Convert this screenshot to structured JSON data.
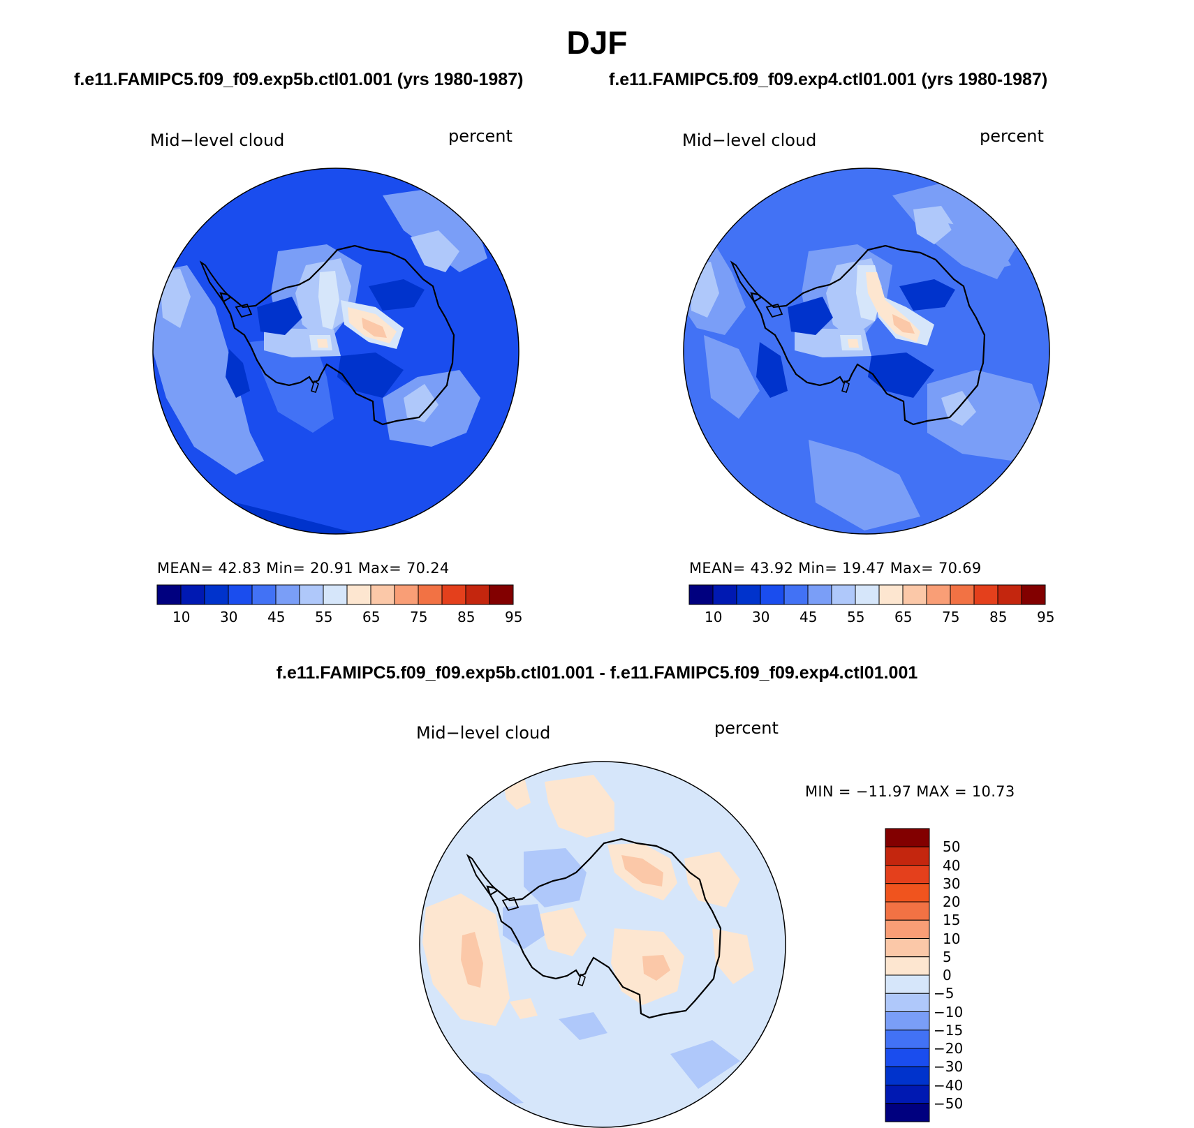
{
  "title": "DJF",
  "panels": [
    {
      "case_title": "f.e11.FAMIPC5.f09_f09.exp5b.ctl01.001 (yrs 1980-1987)",
      "variable": "Mid−level cloud",
      "units": "percent",
      "stats": "MEAN=   42.83   Min=   20.91   Max=   70.24",
      "field": "field1"
    },
    {
      "case_title": "f.e11.FAMIPC5.f09_f09.exp4.ctl01.001 (yrs 1980-1987)",
      "variable": "Mid−level cloud",
      "units": "percent",
      "stats": "MEAN=   43.92   Min=   19.47   Max=   70.69",
      "field": "field2"
    }
  ],
  "difference": {
    "title": "f.e11.FAMIPC5.f09_f09.exp5b.ctl01.001 - f.e11.FAMIPC5.f09_f09.exp4.ctl01.001",
    "variable": "Mid−level cloud",
    "units": "percent",
    "stats": "MIN = −11.97 MAX =   10.73"
  },
  "colorbar_main": {
    "ticks": [
      "10",
      "30",
      "45",
      "55",
      "65",
      "75",
      "85",
      "95"
    ],
    "colors": [
      "#00007f",
      "#0019b2",
      "#0033cc",
      "#1a4dee",
      "#4272f5",
      "#7a9ef7",
      "#afc8fa",
      "#d6e6fa",
      "#fde6d0",
      "#fbc8a8",
      "#f99e76",
      "#f27244",
      "#e4401c",
      "#c4260e",
      "#820000"
    ]
  },
  "colorbar_diff": {
    "ticks": [
      "50",
      "40",
      "30",
      "20",
      "15",
      "10",
      "5",
      "0",
      "−5",
      "−10",
      "−15",
      "−20",
      "−30",
      "−40",
      "−50"
    ],
    "colors": [
      "#820000",
      "#c4260e",
      "#e4401c",
      "#f0541e",
      "#f27244",
      "#f99e76",
      "#fbc8a8",
      "#fde6d0",
      "#d6e6fa",
      "#afc8fa",
      "#7a9ef7",
      "#4272f5",
      "#1a4dee",
      "#0033cc",
      "#0019b2",
      "#00007f"
    ]
  },
  "map_colors": {
    "field1": {
      "bg": "#1a4dee",
      "ocean": "#4272f5",
      "light": "#7a9ef7",
      "pale": "#afc8fa",
      "white": "#d6e6fa",
      "deep": "#0033cc",
      "warm1": "#fde6d0",
      "warm2": "#fbc8a8"
    },
    "field2": {
      "bg": "#4272f5",
      "ocean": "#1a4dee",
      "light": "#7a9ef7",
      "pale": "#afc8fa",
      "white": "#d6e6fa",
      "deep": "#0033cc",
      "warm1": "#fde6d0",
      "warm2": "#fbc8a8"
    },
    "diff": {
      "bg": "#d6e6fa",
      "warm1": "#fde6d0",
      "warm2": "#fbc8a8",
      "cool1": "#afc8fa",
      "cool2": "#7a9ef7"
    }
  }
}
